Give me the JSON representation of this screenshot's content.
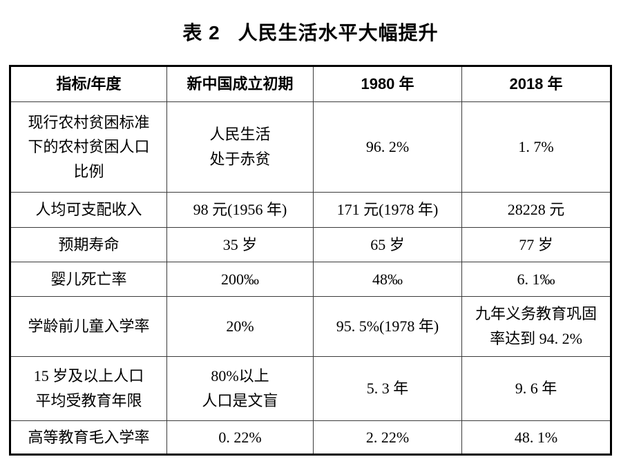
{
  "page": {
    "background_color": "#ffffff",
    "text_color": "#000000",
    "outer_border_color": "#000000",
    "inner_border_color": "#3a3a3a"
  },
  "title": {
    "label": "表 2",
    "text": "人民生活水平大幅提升"
  },
  "table": {
    "headers": [
      "指标/年度",
      "新中国成立初期",
      "1980 年",
      "2018 年"
    ],
    "rows": [
      [
        "现行农村贫困标准\n下的农村贫困人口\n比例",
        "人民生活\n处于赤贫",
        "96. 2%",
        "1. 7%"
      ],
      [
        "人均可支配收入",
        "98 元(1956 年)",
        "171 元(1978 年)",
        "28228 元"
      ],
      [
        "预期寿命",
        "35 岁",
        "65 岁",
        "77 岁"
      ],
      [
        "婴儿死亡率",
        "200‰",
        "48‰",
        "6. 1‰"
      ],
      [
        "学龄前儿童入学率",
        "20%",
        "95. 5%(1978 年)",
        "九年义务教育巩固\n率达到 94. 2%"
      ],
      [
        "15 岁及以上人口\n平均受教育年限",
        "80%以上\n人口是文盲",
        "5. 3 年",
        "9. 6 年"
      ],
      [
        "高等教育毛入学率",
        "0. 22%",
        "2. 22%",
        "48. 1%"
      ]
    ]
  },
  "chart_data": {
    "type": "table",
    "title": "表 2 人民生活水平大幅提升",
    "columns": [
      "指标/年度",
      "新中国成立初期",
      "1980 年",
      "2018 年"
    ],
    "records": [
      {
        "指标": "现行农村贫困标准下的农村贫困人口比例",
        "新中国成立初期": "人民生活处于赤贫",
        "1980年": "96.2%",
        "2018年": "1.7%"
      },
      {
        "指标": "人均可支配收入",
        "新中国成立初期": "98 元(1956 年)",
        "1980年": "171 元(1978 年)",
        "2018年": "28228 元"
      },
      {
        "指标": "预期寿命",
        "新中国成立初期": "35 岁",
        "1980年": "65 岁",
        "2018年": "77 岁"
      },
      {
        "指标": "婴儿死亡率",
        "新中国成立初期": "200‰",
        "1980年": "48‰",
        "2018年": "6.1‰"
      },
      {
        "指标": "学龄前儿童入学率",
        "新中国成立初期": "20%",
        "1980年": "95.5%(1978 年)",
        "2018年": "九年义务教育巩固率达到 94.2%"
      },
      {
        "指标": "15 岁及以上人口平均受教育年限",
        "新中国成立初期": "80%以上人口是文盲",
        "1980年": "5.3 年",
        "2018年": "9.6 年"
      },
      {
        "指标": "高等教育毛入学率",
        "新中国成立初期": "0.22%",
        "1980年": "2.22%",
        "2018年": "48.1%"
      }
    ]
  }
}
